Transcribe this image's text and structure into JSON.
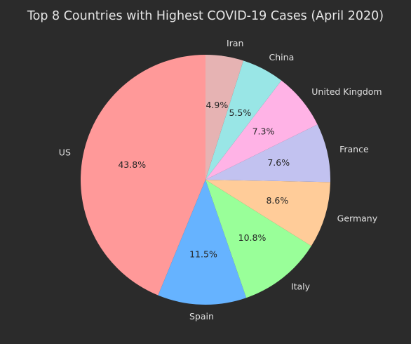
{
  "chart_data": {
    "type": "pie",
    "title": "Top 8 Countries with Highest COVID-19 Cases (April 2020)",
    "categories": [
      "US",
      "Spain",
      "Italy",
      "Germany",
      "France",
      "United Kingdom",
      "China",
      "Iran"
    ],
    "values": [
      43.8,
      11.5,
      10.8,
      8.6,
      7.6,
      7.3,
      5.5,
      4.9
    ],
    "value_labels": [
      "43.8%",
      "11.5%",
      "10.8%",
      "8.6%",
      "7.6%",
      "7.3%",
      "5.5%",
      "4.9%"
    ],
    "colors": [
      "#ff9999",
      "#66b3ff",
      "#99ff99",
      "#ffcc99",
      "#c2c2f0",
      "#ffb3e6",
      "#99e6e6",
      "#e6b3b3"
    ],
    "start_angle_deg": 90,
    "direction": "counterclockwise",
    "legend": "none"
  }
}
